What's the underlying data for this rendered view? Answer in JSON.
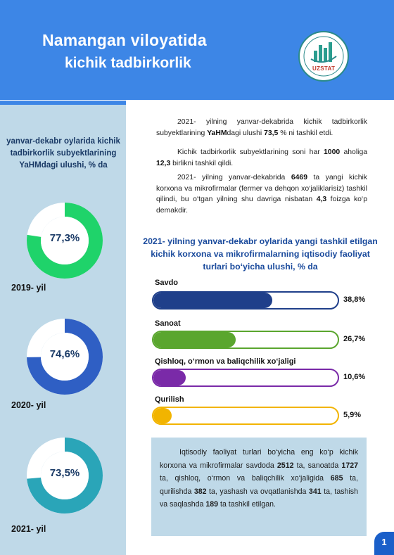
{
  "header": {
    "title_line1": "Namangan viloyatida",
    "title_line2": "kichik tadbirkorlik",
    "logo_text": "UZSTAT"
  },
  "left": {
    "caption": "yanvar-dekabr oylarida kichik tadbirkorlik subyektlarining YaHMdagi ulushi, % da",
    "donuts": [
      {
        "value": "77,3%",
        "fraction": 0.773,
        "year": "2019- yil",
        "color": "#1fd36a"
      },
      {
        "value": "74,6%",
        "fraction": 0.746,
        "year": "2020- yil",
        "color": "#2f5fc4"
      },
      {
        "value": "73,5%",
        "fraction": 0.735,
        "year": "2021- yil",
        "color": "#2aa5b8"
      }
    ]
  },
  "paragraphs": {
    "p1": {
      "t1": "2021- yilning yanvar-dekabrida kichik tadbirkorlik subyektlarining ",
      "b1": "YaHM",
      "t2": "dagi ulushi ",
      "b2": "73,5",
      "t3": " % ni tashkil etdi."
    },
    "p2": {
      "t1": "Kichik tadbirkorlik subyektlarining soni har ",
      "b1": "1000",
      "t2": " aholiga ",
      "b2": "12,3",
      "t3": " birlikni tashkil qildi."
    },
    "p3": {
      "t1": "2021- yilning yanvar-dekabrida ",
      "b1": "6469",
      "t2": " ta yangi kichik korxona va mikrofirmalar (fermer va dehqon xo‘jaliklarisiz) tashkil qilindi, bu o‘tgan yilning shu davriga nisbatan ",
      "b2": "4,3",
      "t3": " foizga ko‘p demakdir."
    }
  },
  "chart_data": {
    "type": "bar",
    "title": "2021- yilning yanvar-dekabr oylarida yangi tashkil etilgan kichik korxona va mikrofirmalarning iqtisodiy faoliyat turlari bo‘yicha ulushi, % da",
    "categories": [
      "Savdo",
      "Sanoat",
      "Qishloq, o‘rmon va baliqchilik xo‘jaligi",
      "Qurilish"
    ],
    "values": [
      38.8,
      26.7,
      10.6,
      5.9
    ],
    "value_labels": [
      "38,8%",
      "26,7%",
      "10,6%",
      "5,9%"
    ],
    "colors": [
      "#1f3f8a",
      "#5aa62e",
      "#7a2aa8",
      "#f2b400"
    ],
    "xlim": [
      0,
      60
    ]
  },
  "infobox": {
    "t1": "Iqtisodiy faoliyat turlari bo‘yicha eng ko‘p kichik korxona va mikrofirmalar savdoda ",
    "b1": "2512",
    "t2": " ta, sanoatda ",
    "b2": "1727",
    "t3": " ta, qishloq, o‘rmon va baliqchilik xo‘jaligida ",
    "b3": "685",
    "t4": " ta, qurilishda ",
    "b4": "382",
    "t5": " ta, yashash va ovqatlanishda ",
    "b5": "341",
    "t6": " ta, tashish va saqlashda ",
    "b6": "189",
    "t7": " ta tashkil etilgan."
  },
  "page_number": "1"
}
